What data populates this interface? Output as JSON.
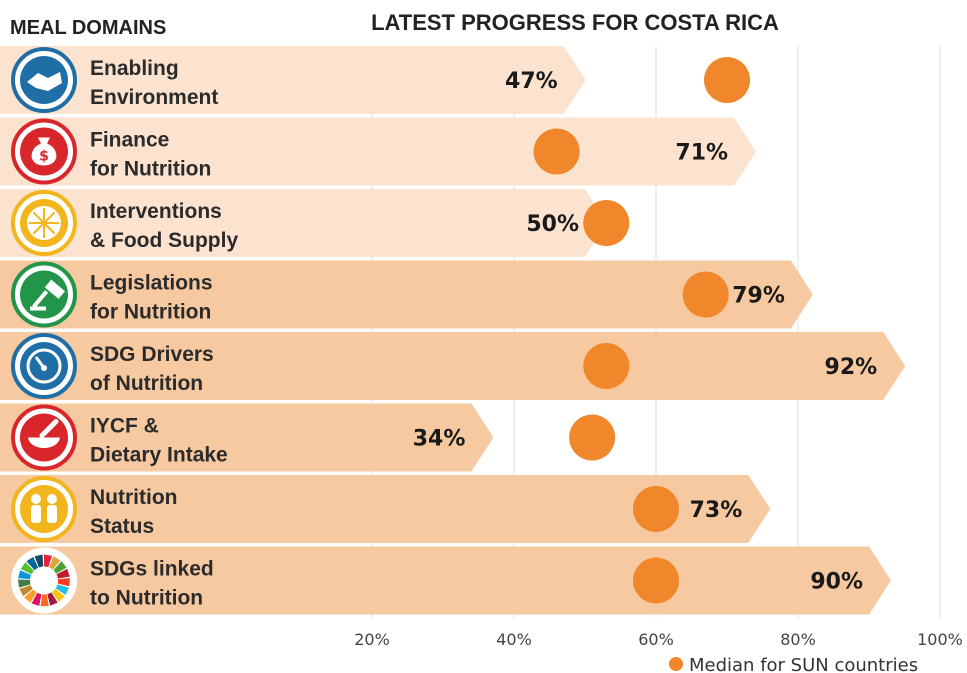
{
  "header": {
    "domains_title": "MEAL DOMAINS",
    "chart_title": "LATEST PROGRESS FOR COSTA RICA"
  },
  "legend": {
    "median_label": "Median for SUN countries"
  },
  "colors": {
    "bar_light": "#fbe3cf",
    "bar_dark": "#f6c9a1",
    "median_dot": "#f0872b",
    "grid": "#dddddd"
  },
  "chart_data": {
    "type": "bar",
    "orientation": "horizontal",
    "title": "LATEST PROGRESS FOR COSTA RICA",
    "xlim": [
      0,
      100
    ],
    "x_ticks": [
      20,
      40,
      60,
      80,
      100
    ],
    "x_tick_labels": [
      "20%",
      "40%",
      "60%",
      "80%",
      "100%"
    ],
    "grid": true,
    "legend_position": "bottom-right",
    "categories": [
      {
        "line1": "Enabling",
        "line2": "Environment",
        "icon": "handshake-icon",
        "icon_color": "#1f6fa6"
      },
      {
        "line1": "Finance",
        "line2": "for Nutrition",
        "icon": "money-bag-icon",
        "icon_color": "#d9262b"
      },
      {
        "line1": "Interventions",
        "line2": "& Food Supply",
        "icon": "orange-slice-icon",
        "icon_color": "#f2b51e"
      },
      {
        "line1": "Legislations",
        "line2": "for Nutrition",
        "icon": "gavel-icon",
        "icon_color": "#23954a"
      },
      {
        "line1": "SDG Drivers",
        "line2": "of Nutrition",
        "icon": "gauge-icon",
        "icon_color": "#1f6fa6"
      },
      {
        "line1": "IYCF &",
        "line2": "Dietary Intake",
        "icon": "mortar-bowl-icon",
        "icon_color": "#d9262b"
      },
      {
        "line1": "Nutrition",
        "line2": "Status",
        "icon": "children-icon",
        "icon_color": "#f2b51e"
      },
      {
        "line1": "SDGs linked",
        "line2": "to Nutrition",
        "icon": "sdg-wheel-icon",
        "icon_color": "#888888"
      }
    ],
    "series": [
      {
        "name": "Costa Rica",
        "values": [
          47,
          71,
          50,
          79,
          92,
          34,
          73,
          90
        ],
        "value_labels": [
          "47%",
          "71%",
          "50%",
          "79%",
          "92%",
          "34%",
          "73%",
          "90%"
        ]
      },
      {
        "name": "Median for SUN countries",
        "values": [
          70,
          46,
          53,
          67,
          53,
          51,
          60,
          60
        ]
      }
    ]
  }
}
